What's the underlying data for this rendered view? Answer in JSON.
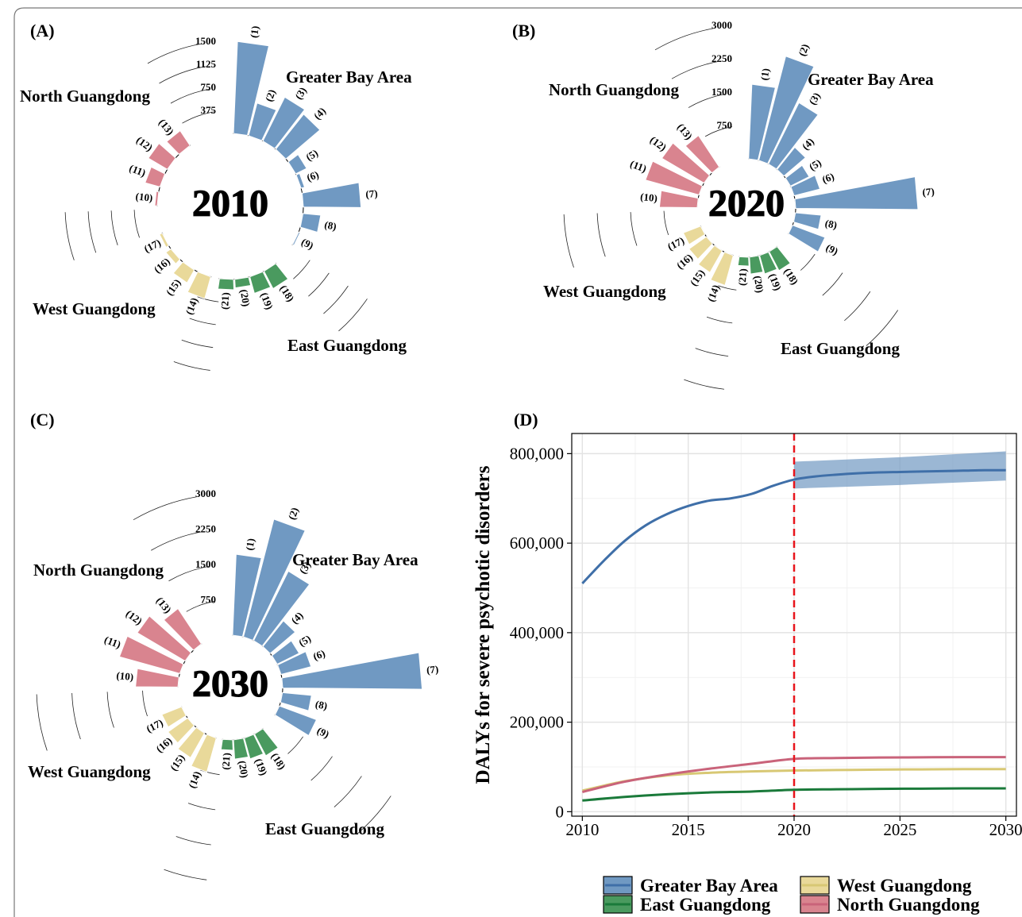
{
  "colors": {
    "greater_bay": "#7099c2",
    "north": "#d9848f",
    "west": "#e9d99a",
    "east": "#4a9a5f",
    "gba_line": "#3f6fa8",
    "north_line": "#c9637a",
    "west_line": "#d8c874",
    "east_line": "#1a7a3a",
    "gba_ribbon": "#7099c2",
    "forecast_line": "#e8141b"
  },
  "chart_data": [
    {
      "type": "bar",
      "subtype": "circular-bar",
      "panel": "(A)",
      "year": "2010",
      "scale_max": 1500,
      "scale_ticks": [
        1500,
        1125,
        750,
        375
      ],
      "regions": [
        "Greater Bay Area",
        "North Guangdong",
        "West Guangdong",
        "East Guangdong"
      ],
      "bars": [
        {
          "id": 1,
          "label": "(1)",
          "region": "Greater Bay Area",
          "value": 1500
        },
        {
          "id": 2,
          "label": "(2)",
          "region": "Greater Bay Area",
          "value": 550
        },
        {
          "id": 3,
          "label": "(3)",
          "region": "Greater Bay Area",
          "value": 800
        },
        {
          "id": 4,
          "label": "(4)",
          "region": "Greater Bay Area",
          "value": 730
        },
        {
          "id": 5,
          "label": "(5)",
          "region": "Greater Bay Area",
          "value": 200
        },
        {
          "id": 6,
          "label": "(6)",
          "region": "Greater Bay Area",
          "value": 60
        },
        {
          "id": 7,
          "label": "(7)",
          "region": "Greater Bay Area",
          "value": 940
        },
        {
          "id": 8,
          "label": "(8)",
          "region": "Greater Bay Area",
          "value": 290
        },
        {
          "id": 9,
          "label": "(9)",
          "region": "Greater Bay Area",
          "value": 25
        },
        {
          "id": 10,
          "label": "(10)",
          "region": "North Guangdong",
          "value": 40
        },
        {
          "id": 11,
          "label": "(11)",
          "region": "North Guangdong",
          "value": 250
        },
        {
          "id": 12,
          "label": "(12)",
          "region": "North Guangdong",
          "value": 360
        },
        {
          "id": 13,
          "label": "(13)",
          "region": "North Guangdong",
          "value": 290
        },
        {
          "id": 14,
          "label": "(14)",
          "region": "West Guangdong",
          "value": 370
        },
        {
          "id": 15,
          "label": "(15)",
          "region": "West Guangdong",
          "value": 240
        },
        {
          "id": 16,
          "label": "(16)",
          "region": "West Guangdong",
          "value": 100
        },
        {
          "id": 17,
          "label": "(17)",
          "region": "West Guangdong",
          "value": 50
        },
        {
          "id": 18,
          "label": "(18)",
          "region": "East Guangdong",
          "value": 320
        },
        {
          "id": 19,
          "label": "(19)",
          "region": "East Guangdong",
          "value": 280
        },
        {
          "id": 20,
          "label": "(20)",
          "region": "East Guangdong",
          "value": 140
        },
        {
          "id": 21,
          "label": "(21)",
          "region": "East Guangdong",
          "value": 170
        }
      ]
    },
    {
      "type": "bar",
      "subtype": "circular-bar",
      "panel": "(B)",
      "year": "2020",
      "scale_max": 3000,
      "scale_ticks": [
        3000,
        2250,
        1500,
        750
      ],
      "regions": [
        "Greater Bay Area",
        "North Guangdong",
        "West Guangdong",
        "East Guangdong"
      ],
      "bars": [
        {
          "id": 1,
          "label": "(1)",
          "region": "Greater Bay Area",
          "value": 1680
        },
        {
          "id": 2,
          "label": "(2)",
          "region": "Greater Bay Area",
          "value": 2420
        },
        {
          "id": 3,
          "label": "(3)",
          "region": "Greater Bay Area",
          "value": 1540
        },
        {
          "id": 4,
          "label": "(4)",
          "region": "Greater Bay Area",
          "value": 640
        },
        {
          "id": 5,
          "label": "(5)",
          "region": "Greater Bay Area",
          "value": 470
        },
        {
          "id": 6,
          "label": "(6)",
          "region": "Greater Bay Area",
          "value": 600
        },
        {
          "id": 7,
          "label": "(7)",
          "region": "Greater Bay Area",
          "value": 2750
        },
        {
          "id": 8,
          "label": "(8)",
          "region": "Greater Bay Area",
          "value": 580
        },
        {
          "id": 9,
          "label": "(9)",
          "region": "Greater Bay Area",
          "value": 780
        },
        {
          "id": 10,
          "label": "(10)",
          "region": "North Guangdong",
          "value": 850
        },
        {
          "id": 11,
          "label": "(11)",
          "region": "North Guangdong",
          "value": 1250
        },
        {
          "id": 12,
          "label": "(12)",
          "region": "North Guangdong",
          "value": 1100
        },
        {
          "id": 13,
          "label": "(13)",
          "region": "North Guangdong",
          "value": 850
        },
        {
          "id": 14,
          "label": "(14)",
          "region": "West Guangdong",
          "value": 700
        },
        {
          "id": 15,
          "label": "(15)",
          "region": "West Guangdong",
          "value": 560
        },
        {
          "id": 16,
          "label": "(16)",
          "region": "West Guangdong",
          "value": 480
        },
        {
          "id": 17,
          "label": "(17)",
          "region": "West Guangdong",
          "value": 420
        },
        {
          "id": 18,
          "label": "(18)",
          "region": "East Guangdong",
          "value": 480
        },
        {
          "id": 19,
          "label": "(19)",
          "region": "East Guangdong",
          "value": 430
        },
        {
          "id": 20,
          "label": "(20)",
          "region": "East Guangdong",
          "value": 380
        },
        {
          "id": 21,
          "label": "(21)",
          "region": "East Guangdong",
          "value": 200
        }
      ]
    },
    {
      "type": "bar",
      "subtype": "circular-bar",
      "panel": "(C)",
      "year": "2030",
      "scale_max": 3000,
      "scale_ticks": [
        3000,
        2250,
        1500,
        750
      ],
      "regions": [
        "Greater Bay Area",
        "North Guangdong",
        "West Guangdong",
        "East Guangdong"
      ],
      "bars": [
        {
          "id": 1,
          "label": "(1)",
          "region": "Greater Bay Area",
          "value": 1720
        },
        {
          "id": 2,
          "label": "(2)",
          "region": "Greater Bay Area",
          "value": 2580
        },
        {
          "id": 3,
          "label": "(3)",
          "region": "Greater Bay Area",
          "value": 1650
        },
        {
          "id": 4,
          "label": "(4)",
          "region": "Greater Bay Area",
          "value": 700
        },
        {
          "id": 5,
          "label": "(5)",
          "region": "Greater Bay Area",
          "value": 520
        },
        {
          "id": 6,
          "label": "(6)",
          "region": "Greater Bay Area",
          "value": 660
        },
        {
          "id": 7,
          "label": "(7)",
          "region": "Greater Bay Area",
          "value": 2960
        },
        {
          "id": 8,
          "label": "(8)",
          "region": "Greater Bay Area",
          "value": 620
        },
        {
          "id": 9,
          "label": "(9)",
          "region": "Greater Bay Area",
          "value": 840
        },
        {
          "id": 10,
          "label": "(10)",
          "region": "North Guangdong",
          "value": 900
        },
        {
          "id": 11,
          "label": "(11)",
          "region": "North Guangdong",
          "value": 1330
        },
        {
          "id": 12,
          "label": "(12)",
          "region": "North Guangdong",
          "value": 1180
        },
        {
          "id": 13,
          "label": "(13)",
          "region": "North Guangdong",
          "value": 900
        },
        {
          "id": 14,
          "label": "(14)",
          "region": "West Guangdong",
          "value": 750
        },
        {
          "id": 15,
          "label": "(15)",
          "region": "West Guangdong",
          "value": 600
        },
        {
          "id": 16,
          "label": "(16)",
          "region": "West Guangdong",
          "value": 510
        },
        {
          "id": 17,
          "label": "(17)",
          "region": "West Guangdong",
          "value": 450
        },
        {
          "id": 18,
          "label": "(18)",
          "region": "East Guangdong",
          "value": 520
        },
        {
          "id": 19,
          "label": "(19)",
          "region": "East Guangdong",
          "value": 460
        },
        {
          "id": 20,
          "label": "(20)",
          "region": "East Guangdong",
          "value": 410
        },
        {
          "id": 21,
          "label": "(21)",
          "region": "East Guangdong",
          "value": 220
        }
      ]
    },
    {
      "type": "line",
      "panel": "(D)",
      "ylabel": "DALYs for severe psychotic disorders",
      "xlabel": "",
      "xlim": [
        2009.5,
        2030.5
      ],
      "ylim": [
        -10000,
        845000
      ],
      "xticks": [
        2010,
        2015,
        2020,
        2025,
        2030
      ],
      "xtick_labels": [
        "2010",
        "2015",
        "2020",
        "2025",
        "2030"
      ],
      "yticks": [
        0,
        200000,
        400000,
        600000,
        800000
      ],
      "ytick_labels": [
        "0",
        "200,000",
        "400,000",
        "600,000",
        "800,000"
      ],
      "forecast_start": 2020,
      "grid": true,
      "legend_position": "bottom",
      "series": [
        {
          "name": "Greater Bay Area",
          "x": [
            2010,
            2011,
            2012,
            2013,
            2014,
            2015,
            2016,
            2017,
            2018,
            2019,
            2020,
            2021,
            2022,
            2023,
            2024,
            2025,
            2026,
            2027,
            2028,
            2029,
            2030
          ],
          "values": [
            510000,
            560000,
            605000,
            640000,
            665000,
            683000,
            695000,
            700000,
            710000,
            728000,
            742000,
            749000,
            753000,
            756000,
            758000,
            759000,
            760000,
            761000,
            762000,
            763000,
            763000
          ],
          "ribbon_x": [
            2020,
            2025,
            2030
          ],
          "ribbon_upper": [
            782000,
            792000,
            805000
          ],
          "ribbon_lower": [
            722000,
            730000,
            740000
          ]
        },
        {
          "name": "East Guangdong",
          "x": [
            2010,
            2012,
            2014,
            2016,
            2018,
            2020,
            2022,
            2024,
            2026,
            2028,
            2030
          ],
          "values": [
            25000,
            33000,
            39000,
            43000,
            45000,
            49000,
            50000,
            51000,
            51500,
            52000,
            52000
          ]
        },
        {
          "name": "West Guangdong",
          "x": [
            2010,
            2012,
            2014,
            2016,
            2018,
            2020,
            2022,
            2024,
            2026,
            2028,
            2030
          ],
          "values": [
            47000,
            68000,
            81000,
            87000,
            90000,
            92000,
            93000,
            94000,
            94500,
            95000,
            95000
          ]
        },
        {
          "name": "North Guangdong",
          "x": [
            2010,
            2012,
            2014,
            2016,
            2018,
            2020,
            2022,
            2024,
            2026,
            2028,
            2030
          ],
          "values": [
            44000,
            67000,
            83000,
            96000,
            107000,
            118000,
            120000,
            121000,
            121500,
            122000,
            122000
          ]
        }
      ]
    }
  ]
}
